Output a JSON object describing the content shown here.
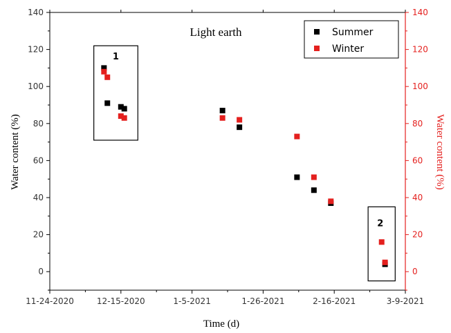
{
  "chart_data": {
    "type": "scatter",
    "title": "Light earth",
    "xlabel": "Time (d)",
    "ylabel": "Water content (%)",
    "ylabel_right": "Water content (%)",
    "x_axis_type": "date",
    "xlim": [
      "2020-11-24",
      "2021-03-09"
    ],
    "x_ticks": [
      "2020-11-24",
      "2020-12-15",
      "2021-01-05",
      "2021-01-26",
      "2021-02-16",
      "2021-03-09"
    ],
    "x_tick_labels": [
      "11-24-2020",
      "12-15-2020",
      "1-5-2021",
      "1-26-2021",
      "2-16-2021",
      "3-9-2021"
    ],
    "ylim": [
      -10,
      140
    ],
    "y_ticks": [
      0,
      20,
      40,
      60,
      80,
      100,
      120,
      140
    ],
    "y_tick_labels": [
      "0",
      "20",
      "40",
      "60",
      "80",
      "100",
      "120",
      "140"
    ],
    "ylim_right": [
      -10,
      140
    ],
    "y_ticks_right": [
      0,
      20,
      40,
      60,
      80,
      100,
      120,
      140
    ],
    "y_tick_labels_right": [
      "0",
      "20",
      "40",
      "60",
      "80",
      "100",
      "120",
      "140"
    ],
    "legend_position": "top-right",
    "grid": false,
    "series": [
      {
        "name": "Summer",
        "color": "#000000",
        "points": [
          {
            "x": "2020-12-10",
            "y": 110
          },
          {
            "x": "2020-12-11",
            "y": 91
          },
          {
            "x": "2020-12-15",
            "y": 89
          },
          {
            "x": "2020-12-16",
            "y": 88
          },
          {
            "x": "2021-01-14",
            "y": 87
          },
          {
            "x": "2021-01-19",
            "y": 78
          },
          {
            "x": "2021-02-05",
            "y": 51
          },
          {
            "x": "2021-02-10",
            "y": 44
          },
          {
            "x": "2021-02-15",
            "y": 37
          },
          {
            "x": "2021-03-03",
            "y": 4
          }
        ]
      },
      {
        "name": "Winter",
        "color": "#e4201e",
        "points": [
          {
            "x": "2020-12-10",
            "y": 108
          },
          {
            "x": "2020-12-11",
            "y": 105
          },
          {
            "x": "2020-12-15",
            "y": 84
          },
          {
            "x": "2020-12-16",
            "y": 83
          },
          {
            "x": "2021-01-14",
            "y": 83
          },
          {
            "x": "2021-01-19",
            "y": 82
          },
          {
            "x": "2021-02-05",
            "y": 73
          },
          {
            "x": "2021-02-10",
            "y": 51
          },
          {
            "x": "2021-02-15",
            "y": 38
          },
          {
            "x": "2021-03-02",
            "y": 16
          },
          {
            "x": "2021-03-03",
            "y": 5
          }
        ]
      }
    ],
    "annotations": [
      {
        "label": "1",
        "x_range": [
          "2020-12-07",
          "2020-12-20"
        ],
        "y_range": [
          71,
          122
        ]
      },
      {
        "label": "2",
        "x_range": [
          "2021-02-26",
          "2021-03-06"
        ],
        "y_range": [
          -5,
          35
        ]
      }
    ]
  }
}
